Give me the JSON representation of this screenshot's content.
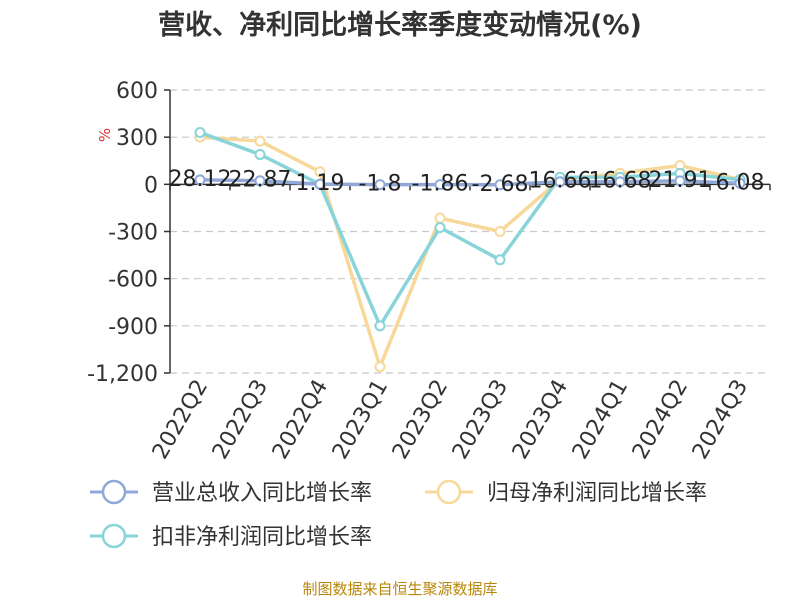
{
  "chart_data": {
    "type": "line",
    "title": "营收、净利同比增长率季度变动情况(%)",
    "unit": "%",
    "source": "制图数据来自恒生聚源数据库",
    "categories": [
      "2022Q2",
      "2022Q3",
      "2022Q4",
      "2023Q1",
      "2023Q2",
      "2023Q3",
      "2023Q4",
      "2024Q1",
      "2024Q2",
      "2024Q3"
    ],
    "ylim": [
      -1200,
      600
    ],
    "yticks": [
      600,
      300,
      0,
      -300,
      -600,
      -900,
      -1200
    ],
    "ytick_labels": [
      "600",
      "300",
      "0",
      "-300",
      "-600",
      "-900",
      "-1,200"
    ],
    "grid": true,
    "legend_position": "bottom",
    "series": [
      {
        "name": "营业总收入同比增长率",
        "color": "#8fa8d8",
        "values": [
          28.12,
          22.87,
          1.19,
          -1.8,
          -1.86,
          -2.68,
          16.66,
          16.68,
          21.91,
          6.08
        ],
        "data_labels": [
          "28.12",
          "22.87",
          "1.19",
          "-1.8",
          "-1.86",
          "-2.68",
          "16.66",
          "16.68",
          "21.91",
          "6.08"
        ]
      },
      {
        "name": "归母净利润同比增长率",
        "color": "#f8d898",
        "values": [
          300,
          275,
          80,
          -1160,
          -215,
          -300,
          30,
          70,
          120,
          30
        ]
      },
      {
        "name": "扣非净利润同比增长率",
        "color": "#88d4d8",
        "values": [
          330,
          190,
          0,
          -900,
          -275,
          -480,
          45,
          45,
          70,
          30
        ]
      }
    ]
  }
}
